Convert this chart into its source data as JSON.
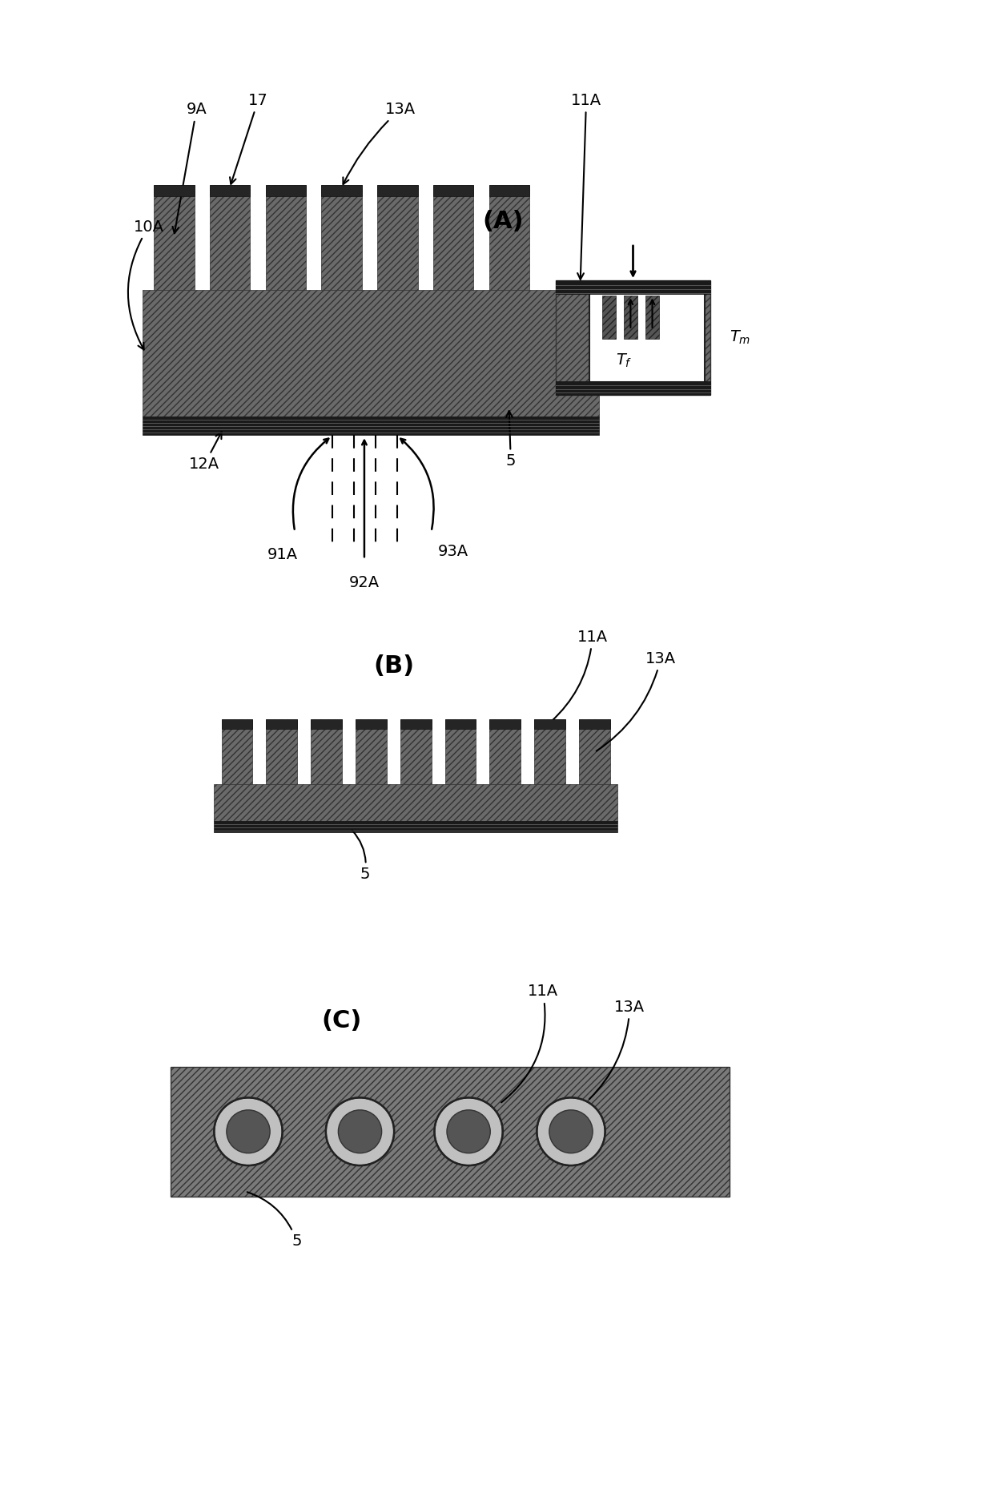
{
  "bg": "#ffffff",
  "black": "#000000",
  "dark": "#2a2a2a",
  "mid": "#606060",
  "light": "#909090",
  "panel_A": "(A)",
  "panel_B": "(B)",
  "panel_C": "(C)"
}
